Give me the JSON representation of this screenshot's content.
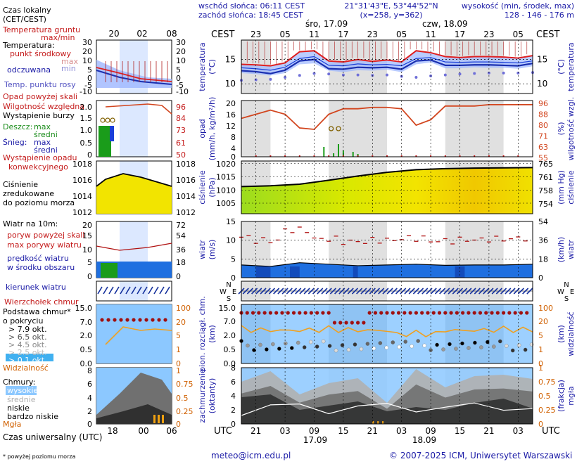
{
  "header": {
    "time_title_1": "Czas lokalny",
    "time_title_2": "(CET/CEST)",
    "sunrise": "wschód słońca: 06:11 CEST",
    "sunset": "zachód słońca: 18:45 CEST",
    "coords": "21°31'43\"E, 53°44'52\"N",
    "grid": "(x=258, y=362)",
    "height_title": "wysokość (min, środek, max)",
    "height_values": "128 - 146 - 176 m",
    "day1": "śro, 17.09",
    "day2": "czw, 18.09",
    "cest": "CEST",
    "utc": "UTC"
  },
  "legend_top_hours": [
    "20",
    "02",
    "08"
  ],
  "local_hours": [
    "23",
    "05",
    "11",
    "17",
    "23",
    "05",
    "11",
    "17",
    "23",
    "05"
  ],
  "utc_hours": [
    "21",
    "03",
    "09",
    "15",
    "21",
    "03",
    "09",
    "15",
    "21",
    "03"
  ],
  "utc_dates": [
    "17.09",
    "18.09"
  ],
  "legend_bottom_hours": [
    "18",
    "00",
    "06"
  ],
  "legend": {
    "temp_soil": "Temperatura gruntu",
    "maxmin": "max/min",
    "temperatura": "Temperatura:",
    "center_point": "punkt środkowy",
    "max_min_lines": [
      "max",
      "min"
    ],
    "perceived": "odczuwana",
    "dewpoint": "Temp. punktu rosy",
    "precip_over": "Opad powyżej skali",
    "humidity": "Wilgotność względna",
    "storm": "Wystąpienie burzy",
    "rain": "Deszcz:",
    "snow": "Śnieg:",
    "rain_max": "max",
    "rain_mid": "średni",
    "snow_max": "max",
    "snow_mid": "średni",
    "conv_1": "Wystąpienie opadu",
    "conv_2": "konwekcyjnego",
    "press_1": "Ciśnienie",
    "press_2": "zredukowane",
    "press_3": "do poziomu morza",
    "wind_title": "Wiatr na 10m:",
    "gust_over": "poryw powyżej skali",
    "gust_max": "max porywy wiatru",
    "wind_mean_1": "prędkość wiatru",
    "wind_mean_2": "w środku obszaru",
    "wind_dir": "kierunek wiatru",
    "cloud_top": "Wierzchołek chmur",
    "cloud_base_1": "Podstawa chmur*",
    "cloud_base_2": "o pokryciu",
    "okt": [
      "> 7.9 okt.",
      "> 6.5 okt.",
      "> 4.5 okt.",
      "> 2.5 okt.",
      "> 0.1 okt."
    ],
    "visibility": "Widzialność",
    "clouds": "Chmury:",
    "high": "wysokie",
    "mid": "średnie",
    "low": "niskie",
    "very_low": "bardzo niskie",
    "fog": "Mgła",
    "utc_label": "Czas uniwersalny (UTC)",
    "footnote": "* powyżej poziomu morza"
  },
  "axis_labels": {
    "temp_left_1": "temperatura",
    "temp_left_2": "(°C)",
    "temp_right_1": "(°C)",
    "temp_right_2": "temperatura",
    "precip_left_1": "opad",
    "precip_left_2": "(mm/h, kg/m²/h)",
    "precip_right_1": "(%)",
    "precip_right_2": "wilgotność wzgl.",
    "press_left_1": "ciśnienie",
    "press_left_2": "(hPa)",
    "press_right_1": "(mm Hg)",
    "press_right_2": "ciśnienie",
    "wind_left_1": "wiatr",
    "wind_left_2": "(m/s)",
    "wind_right_1": "(km/h)",
    "wind_right_2": "wiatr",
    "compass": [
      "N",
      "W",
      "E",
      "S"
    ],
    "cloudbase_left_1": "pion. rozciągł. chm.",
    "cloudbase_left_2": "(km)",
    "cloudbase_right_1": "(km)",
    "cloudbase_right_2": "widzialność",
    "clouds_left_1": "zachmurzenie",
    "clouds_left_2": "(oktanty)",
    "clouds_right_1": "(frakcja)",
    "clouds_right_2": "mgła"
  },
  "footer": {
    "email": "meteo@icm.edu.pl",
    "copyright": "© 2007-2025 ICM, Uniwersytet Warszawski"
  },
  "colors": {
    "temp_red": "#e02020",
    "temp_blue": "#1a3fd8",
    "band_blue": "#9db7ff",
    "humidity": "#d2451e",
    "precip_green": "#1a9c1a",
    "pressure_yellow": "#f2e400",
    "pressure_green": "#9cdc1e",
    "wind_blue": "#1f6fe0",
    "wind_dark": "#0a2d9c",
    "sky": "#8cc8ff",
    "visibility": "#f0a020",
    "cloud_top": "#a01010",
    "axis_label_blue": "#1a1aa6",
    "axis_label_red": "#c41a1a"
  },
  "chart_data": [
    {
      "type": "line",
      "title": "temperatura",
      "ylabel": "°C",
      "ylim": [
        8,
        19
      ],
      "x_hours_from_start": [
        0,
        3,
        6,
        9,
        12,
        15,
        18,
        21,
        24,
        27,
        30,
        33,
        36,
        39,
        42,
        45,
        48,
        51,
        54,
        57,
        60
      ],
      "series": [
        {
          "name": "max",
          "values": [
            14.0,
            13.9,
            13.7,
            14.3,
            16.6,
            16.8,
            14.7,
            14.5,
            15.0,
            14.6,
            14.9,
            14.5,
            16.8,
            16.4,
            15.6,
            15.4,
            15.6,
            15.6,
            15.5,
            15.3,
            15.8
          ]
        },
        {
          "name": "punkt środkowy",
          "values": [
            13.3,
            13.1,
            12.8,
            13.4,
            15.2,
            15.6,
            13.8,
            13.7,
            14.1,
            13.9,
            14.0,
            13.7,
            15.2,
            15.4,
            14.5,
            14.4,
            14.5,
            14.5,
            14.4,
            14.3,
            14.7
          ]
        },
        {
          "name": "min",
          "values": [
            12.2,
            12.0,
            11.7,
            12.2,
            14.0,
            14.2,
            12.7,
            12.4,
            12.8,
            12.7,
            12.9,
            12.4,
            14.0,
            14.4,
            13.2,
            13.2,
            13.4,
            13.3,
            13.3,
            13.1,
            13.6
          ]
        },
        {
          "name": "odczuwana",
          "values": [
            12.7,
            12.5,
            12.1,
            12.8,
            14.7,
            15.0,
            13.1,
            13.0,
            13.4,
            13.3,
            13.4,
            13.0,
            14.7,
            14.9,
            13.8,
            13.8,
            13.9,
            13.9,
            13.8,
            13.7,
            14.2
          ]
        },
        {
          "name": "Temp. punktu rosy",
          "values": [
            11.3,
            11.4,
            11.5,
            11.9,
            12.3,
            12.7,
            12.6,
            12.4,
            12.4,
            12.3,
            12.4,
            12.1,
            11.9,
            12.2,
            12.4,
            12.6,
            12.7,
            12.8,
            12.8,
            12.8,
            12.9
          ]
        }
      ]
    },
    {
      "type": "line",
      "title": "wilgotność wzgl.",
      "ylabel": "%",
      "ylim": [
        55,
        96
      ],
      "x_hours_from_start": [
        0,
        3,
        6,
        9,
        12,
        15,
        18,
        21,
        24,
        27,
        30,
        33,
        36,
        39,
        42,
        45,
        48,
        51,
        54,
        57,
        60
      ],
      "series": [
        {
          "name": "Wilgotność względna",
          "values": [
            83,
            86,
            89,
            86,
            76,
            75,
            86,
            90,
            90,
            91,
            91,
            90,
            78,
            82,
            92,
            92,
            92,
            93,
            93,
            93,
            93
          ]
        }
      ]
    },
    {
      "type": "line",
      "title": "ciśnienie",
      "ylabel": "hPa",
      "ylim": [
        1001,
        1021
      ],
      "x_hours_from_start": [
        0,
        6,
        12,
        18,
        24,
        30,
        36,
        42,
        48,
        54,
        60
      ],
      "series": [
        {
          "name": "Ciśnienie",
          "values": [
            1011.3,
            1011.6,
            1012.2,
            1013.7,
            1015.3,
            1016.7,
            1017.7,
            1018.1,
            1018.3,
            1018.4,
            1018.5
          ]
        }
      ]
    },
    {
      "type": "line",
      "title": "wiatr",
      "ylabel": "m/s",
      "ylim": [
        0,
        15
      ],
      "x_hours_from_start": [
        0,
        6,
        12,
        18,
        24,
        30,
        36,
        42,
        48,
        54,
        60
      ],
      "series": [
        {
          "name": "max porywy wiatru",
          "values": [
            10.8,
            9.9,
            12.7,
            10.3,
            9.6,
            10.0,
            10.5,
            9.8,
            10.1,
            10.3,
            10.5
          ]
        },
        {
          "name": "prędkość wiatru",
          "values": [
            3.4,
            3.0,
            4.0,
            3.6,
            3.2,
            3.4,
            3.6,
            3.3,
            3.4,
            3.4,
            3.6
          ]
        }
      ]
    },
    {
      "type": "area",
      "title": "zachmurzenie",
      "ylabel": "oktanty",
      "ylim": [
        0,
        8
      ],
      "x_hours_from_start": [
        0,
        6,
        12,
        18,
        24,
        30,
        36,
        42,
        48,
        54,
        60
      ],
      "series": [
        {
          "name": "wysokie",
          "values": [
            6.0,
            7.5,
            4.2,
            5.8,
            6.5,
            3.0,
            7.8,
            5.2,
            6.8,
            7.0,
            6.4
          ]
        },
        {
          "name": "niskie",
          "values": [
            3.8,
            4.2,
            2.0,
            2.6,
            3.2,
            1.8,
            2.4,
            2.0,
            3.0,
            3.6,
            2.2
          ]
        }
      ]
    }
  ]
}
